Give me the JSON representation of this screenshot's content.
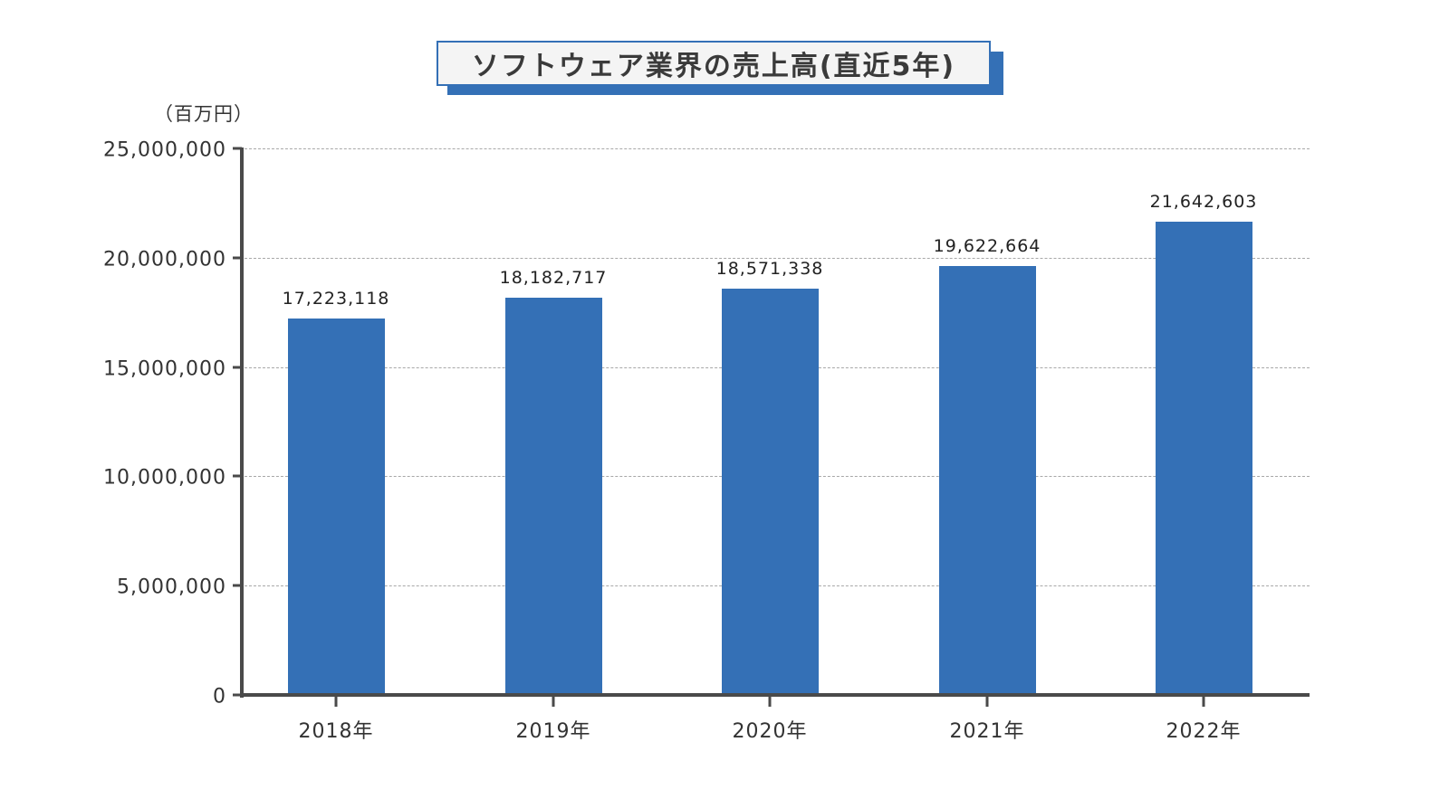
{
  "title": "ソフトウェア業界の売上高(直近5年)",
  "unit_label": "（百万円）",
  "colors": {
    "bar": "#3470b6",
    "title_border": "#3470b6",
    "title_bg": "#f4f4f4",
    "axis": "#4a4a4a",
    "grid": "#a8a8a8"
  },
  "y_ticks": [
    "0",
    "5,000,000",
    "10,000,000",
    "15,000,000",
    "20,000,000",
    "25,000,000"
  ],
  "bars": [
    {
      "category": "2018年",
      "label": "17,223,118"
    },
    {
      "category": "2019年",
      "label": "18,182,717"
    },
    {
      "category": "2020年",
      "label": "18,571,338"
    },
    {
      "category": "2021年",
      "label": "19,622,664"
    },
    {
      "category": "2022年",
      "label": "21,642,603"
    }
  ],
  "chart_data": {
    "type": "bar",
    "title": "ソフトウェア業界の売上高(直近5年)",
    "xlabel": "",
    "ylabel": "（百万円）",
    "categories": [
      "2018年",
      "2019年",
      "2020年",
      "2021年",
      "2022年"
    ],
    "values": [
      17223118,
      18182717,
      18571338,
      19622664,
      21642603
    ],
    "ylim": [
      0,
      25000000
    ],
    "yticks": [
      0,
      5000000,
      10000000,
      15000000,
      20000000,
      25000000
    ],
    "grid": true,
    "grid_style": "dashed horizontal",
    "legend": null,
    "data_labels": true
  }
}
